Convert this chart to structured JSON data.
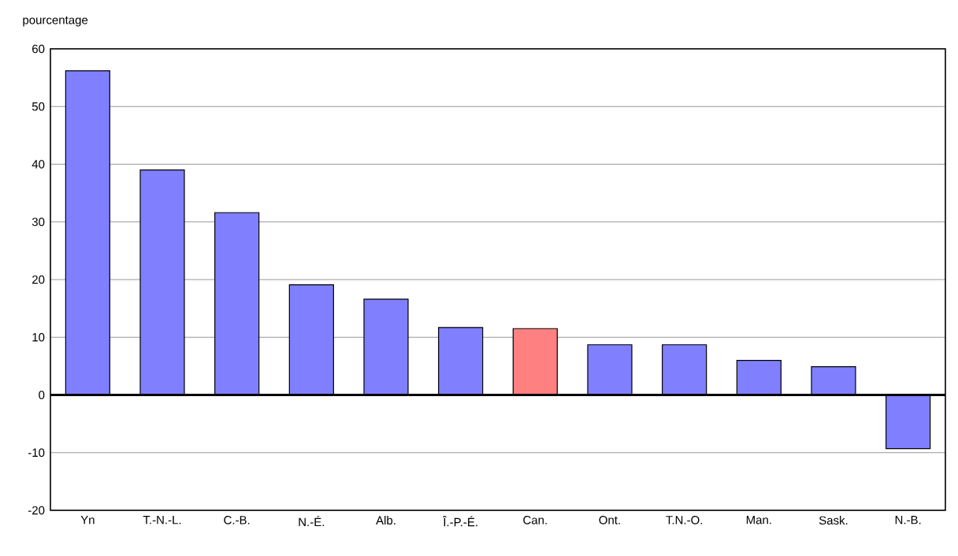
{
  "chart_data": {
    "type": "bar",
    "ylabel": "pourcentage",
    "categories": [
      "Yn",
      "T.-N.-L.",
      "C.-B.",
      "N.-É.",
      "Alb.",
      "Î.-P.-É.",
      "Can.",
      "Ont.",
      "T.N.-O.",
      "Man.",
      "Sask.",
      "N.-B."
    ],
    "values": [
      56.2,
      39.0,
      31.6,
      19.1,
      16.6,
      11.7,
      11.5,
      8.7,
      8.7,
      6.0,
      4.9,
      -9.3
    ],
    "colors": [
      "#8080ff",
      "#8080ff",
      "#8080ff",
      "#8080ff",
      "#8080ff",
      "#8080ff",
      "#ff8080",
      "#8080ff",
      "#8080ff",
      "#8080ff",
      "#8080ff",
      "#8080ff"
    ],
    "ylim": [
      -20,
      60
    ],
    "yticks": [
      -20,
      -10,
      0,
      10,
      20,
      30,
      40,
      50,
      60
    ],
    "grid": "y"
  }
}
